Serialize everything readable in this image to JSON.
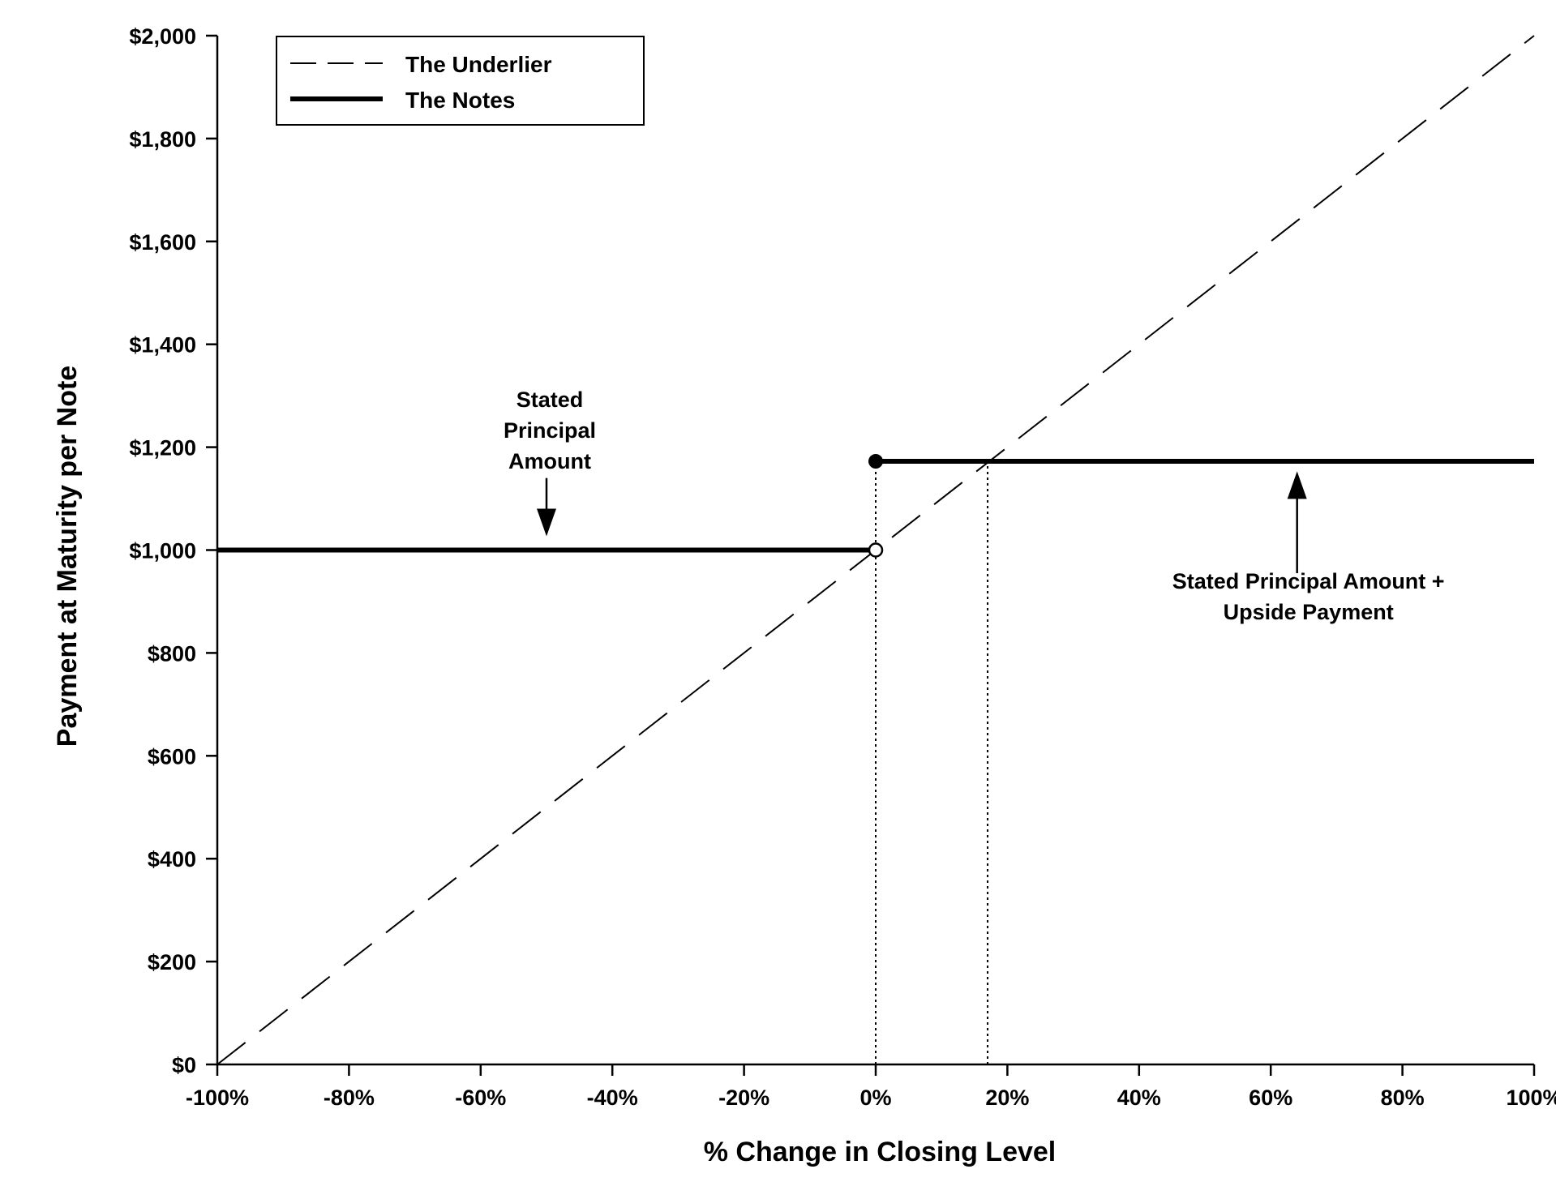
{
  "chart_data": {
    "type": "line",
    "title": "",
    "xlabel": "% Change in Closing Level",
    "ylabel": "Payment at Maturity per Note",
    "xlim": [
      -100,
      100
    ],
    "ylim": [
      0,
      2000
    ],
    "x_ticks": [
      -100,
      -80,
      -60,
      -40,
      -20,
      0,
      20,
      40,
      60,
      80,
      100
    ],
    "x_tick_labels": [
      "-100%",
      "-80%",
      "-60%",
      "-40%",
      "-20%",
      "0%",
      "20%",
      "40%",
      "60%",
      "80%",
      "100%"
    ],
    "y_ticks": [
      0,
      200,
      400,
      600,
      800,
      1000,
      1200,
      1400,
      1600,
      1800,
      2000
    ],
    "y_tick_labels": [
      "$0",
      "$200",
      "$400",
      "$600",
      "$800",
      "$1,000",
      "$1,200",
      "$1,400",
      "$1,600",
      "$1,800",
      "$2,000"
    ],
    "grid": false,
    "legend_position": "top-left",
    "series": [
      {
        "name": "The Underlier",
        "style": "dashed",
        "color": "#000000",
        "points": [
          [
            -100,
            0
          ],
          [
            100,
            2000
          ]
        ]
      },
      {
        "name": "The Notes",
        "style": "solid-thick",
        "color": "#000000",
        "segments": [
          [
            [
              -100,
              1000
            ],
            [
              0,
              1000
            ]
          ],
          [
            [
              0,
              1172.5
            ],
            [
              100,
              1172.5
            ]
          ]
        ],
        "open_point": [
          0,
          1000
        ],
        "closed_point": [
          0,
          1172.5
        ]
      }
    ],
    "reference_lines": [
      {
        "x": 0,
        "y_from": 0,
        "y_to": 1172.5,
        "style": "dotted"
      },
      {
        "x": 17,
        "y_from": 0,
        "y_to": 1172.5,
        "style": "dotted"
      }
    ],
    "annotations": [
      {
        "lines": [
          "Stated",
          "Principal",
          "Amount"
        ],
        "arrow_from": [
          -50,
          1140
        ],
        "arrow_to": [
          -50,
          1030
        ]
      },
      {
        "lines": [
          "Stated Principal Amount +",
          "Upside Payment"
        ],
        "arrow_from": [
          64,
          955
        ],
        "arrow_to": [
          64,
          1150
        ]
      }
    ]
  }
}
